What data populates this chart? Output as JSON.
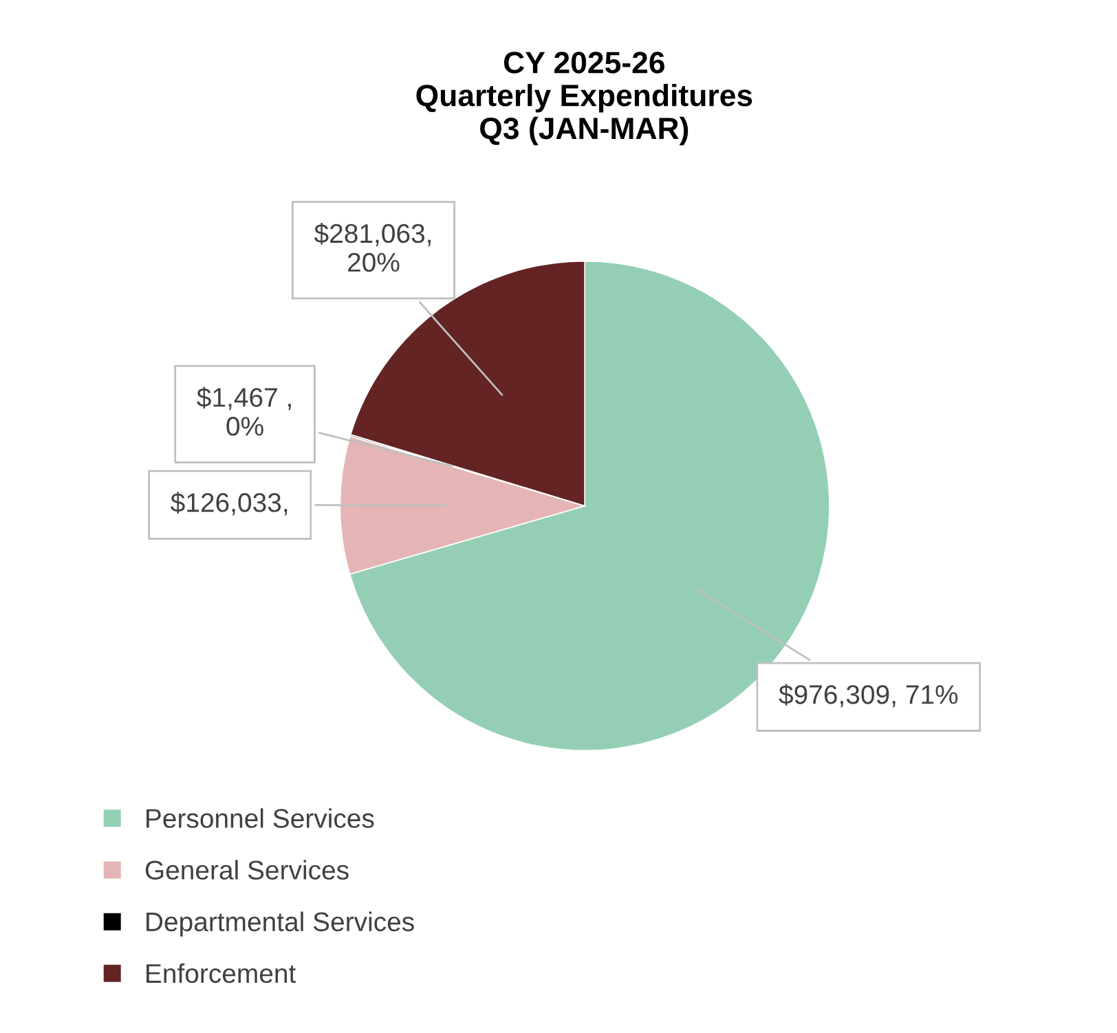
{
  "chart_data": {
    "type": "pie",
    "title": "CY 2025-26\nQuarterly Expenditures\nQ3 (JAN-MAR)",
    "categories": [
      "Personnel Services",
      "General Services",
      "Departmental Services",
      "Enforcement"
    ],
    "values": [
      976309,
      126033,
      1467,
      281063
    ],
    "colors": [
      "#94cfb5",
      "#e5b5b5",
      "#000000",
      "#632423"
    ],
    "value_labels": [
      "$976,309, 71%",
      "$126,033,",
      "$1,467 ,\n0%",
      "$281,063,\n20%"
    ],
    "legend": "bottom left"
  }
}
